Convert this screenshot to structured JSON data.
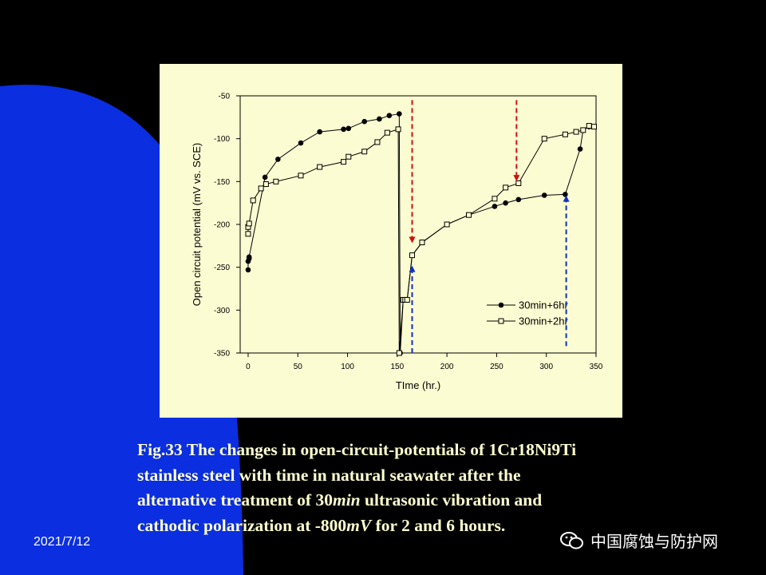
{
  "slide": {
    "date": "2021/7/12",
    "watermark": "中国腐蚀与防护网",
    "caption": {
      "line1": "Fig.33 The changes in open-circuit-potentials of 1Cr18Ni9Ti",
      "line2": "stainless steel with time in natural seawater after the",
      "line3_a": "alternative treatment of 30",
      "line3_b": "min",
      "line3_c": " ultrasonic vibration and",
      "line4_a": "cathodic polarization at -800",
      "line4_b": "mV",
      "line4_c": " for 2 and 6 hours."
    },
    "colors": {
      "background": "#000000",
      "blue_shape": "#0a2ee0",
      "panel": "#fcfcd2",
      "caption": "#ffffd0",
      "red_arrow": "#d01010",
      "blue_arrow": "#1030c0"
    }
  },
  "chart_data": {
    "type": "line",
    "title": "",
    "xlabel": "TIme (hr.)",
    "ylabel": "Open circuit potential (mV vs. SCE)",
    "xlim": [
      -8,
      350
    ],
    "ylim": [
      -350,
      -50
    ],
    "xticks": [
      0,
      50,
      100,
      150,
      200,
      250,
      300,
      350
    ],
    "xtick_labels": [
      "0",
      "50",
      "100",
      "150",
      "200",
      "250",
      "300",
      "350"
    ],
    "yticks": [
      -350,
      -300,
      -250,
      -200,
      -150,
      -100,
      -50
    ],
    "ytick_labels": [
      "-350",
      "-300",
      "-250",
      "-200",
      "-150",
      "-100",
      "-50"
    ],
    "grid": false,
    "legend_position": "bottom-right",
    "series": [
      {
        "name": "30min+6hr",
        "marker": "filled-circle",
        "x": [
          0,
          0,
          1,
          1,
          17,
          30,
          53,
          72,
          96,
          101,
          117,
          132,
          142,
          152,
          153,
          156,
          158,
          160,
          165,
          175,
          200,
          222,
          248,
          259,
          272,
          298,
          319,
          334,
          337,
          343,
          348
        ],
        "y": [
          -253,
          -243,
          -240,
          -238,
          -145,
          -124,
          -105,
          -92,
          -89,
          -88,
          -80,
          -77,
          -73,
          -71,
          -350,
          -288,
          -288,
          -288,
          -236,
          -221,
          -200,
          -189,
          -179,
          -175,
          -171,
          -166,
          -165,
          -112,
          -90,
          -86,
          -86
        ]
      },
      {
        "name": "30min+2hr",
        "marker": "open-square",
        "x": [
          0,
          0,
          1,
          5,
          13,
          18,
          28,
          53,
          72,
          96,
          101,
          117,
          130,
          140,
          151,
          152,
          156,
          158,
          160,
          165,
          175,
          200,
          222,
          248,
          259,
          272,
          298,
          319,
          330,
          337,
          343,
          348
        ],
        "y": [
          -211,
          -203,
          -199,
          -172,
          -158,
          -153,
          -150,
          -143,
          -133,
          -127,
          -121,
          -115,
          -104,
          -93,
          -89,
          -350,
          -288,
          -288,
          -288,
          -236,
          -221,
          -200,
          -189,
          -170,
          -157,
          -152,
          -100,
          -95,
          -92,
          -90,
          -85,
          -86
        ]
      }
    ],
    "annotations": [
      {
        "type": "arrow",
        "direction": "down",
        "color": "red",
        "x": 165,
        "y_from": -55,
        "y_to": -220
      },
      {
        "type": "arrow",
        "direction": "down",
        "color": "red",
        "x": 270,
        "y_from": -55,
        "y_to": -148
      },
      {
        "type": "arrow",
        "direction": "up",
        "color": "blue",
        "x": 165,
        "y_from": -350,
        "y_to": -250
      },
      {
        "type": "arrow",
        "direction": "up",
        "color": "blue",
        "x": 320,
        "y_from": -342,
        "y_to": -168
      }
    ]
  }
}
